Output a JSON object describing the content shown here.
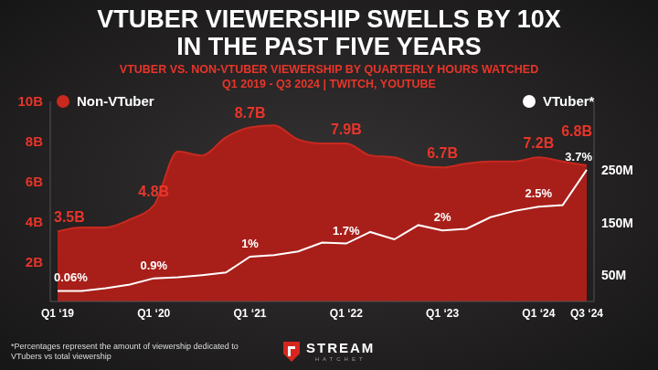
{
  "chart_data": {
    "type": "area",
    "title": "VTUBER VIEWERSHIP SWELLS BY 10X\nIN THE PAST FIVE YEARS",
    "subtitle": "VTUBER VS. NON-VTUBER VIEWERSHIP BY QUARTERLY HOURS WATCHED\nQ1 2019 - Q3 2024 | TWITCH, YOUTUBE",
    "categories": [
      "Q1 ‘19",
      null,
      null,
      null,
      "Q1 ‘20",
      null,
      null,
      null,
      "Q1 ‘21",
      null,
      null,
      null,
      "Q1 ‘22",
      null,
      null,
      null,
      "Q1 ‘23",
      null,
      null,
      null,
      "Q1 ‘24",
      null,
      "Q3 ‘24"
    ],
    "series": [
      {
        "name": "Non-VTuber",
        "color": "#a81f1a",
        "values": [
          3.5,
          3.7,
          3.7,
          4.1,
          4.8,
          7.5,
          7.3,
          8.2,
          8.7,
          8.8,
          8.1,
          7.9,
          7.9,
          7.3,
          7.2,
          6.8,
          6.7,
          6.9,
          7.0,
          7.0,
          7.2,
          7.0,
          6.8
        ],
        "value_labels": [
          "3.5B",
          null,
          null,
          null,
          "4.8B",
          null,
          null,
          null,
          "8.7B",
          null,
          null,
          null,
          "7.9B",
          null,
          null,
          null,
          "6.7B",
          null,
          null,
          null,
          "7.2B",
          null,
          "6.8B"
        ]
      },
      {
        "name": "VTuber*",
        "color": "#ffffff",
        "type": "line",
        "axis": "y2",
        "marker": "none",
        "values": [
          20,
          20,
          25,
          32,
          44,
          46,
          50,
          55,
          85,
          88,
          95,
          112,
          110,
          132,
          118,
          145,
          135,
          138,
          160,
          172,
          180,
          183,
          250
        ]
      }
    ],
    "annotations": [
      {
        "category": "Q1 ‘19",
        "series": "VTuber*",
        "text": "0.06%"
      },
      {
        "category": "Q1 ‘20",
        "series": "VTuber*",
        "text": "0.9%"
      },
      {
        "category": "Q1 ‘21",
        "series": "VTuber*",
        "text": "1%"
      },
      {
        "category": "Q1 ‘22",
        "series": "VTuber*",
        "text": "1.7%"
      },
      {
        "category": "Q1 ‘23",
        "series": "VTuber*",
        "text": "2%"
      },
      {
        "category": "Q1 ‘24",
        "series": "VTuber*",
        "text": "2.5%"
      },
      {
        "category": "Q3 ‘24",
        "series": "VTuber*",
        "text": "3.7%"
      }
    ],
    "ylim": [
      0,
      10
    ],
    "yticks": [
      {
        "value": 2,
        "label": "2B"
      },
      {
        "value": 4,
        "label": "4B"
      },
      {
        "value": 6,
        "label": "6B"
      },
      {
        "value": 8,
        "label": "8B"
      },
      {
        "value": 10,
        "label": "10B"
      }
    ],
    "y2lim": [
      0,
      380
    ],
    "y2ticks": [
      {
        "value": 50,
        "label": "50M"
      },
      {
        "value": 150,
        "label": "150M"
      },
      {
        "value": 250,
        "label": "250M"
      }
    ],
    "grid": false,
    "legend": "top",
    "data_labels": true,
    "footnote": "*Percentages represent the amount of viewership dedicated to VTubers vs total viewership",
    "logo": [
      "STREAM",
      "HATCHET"
    ]
  }
}
